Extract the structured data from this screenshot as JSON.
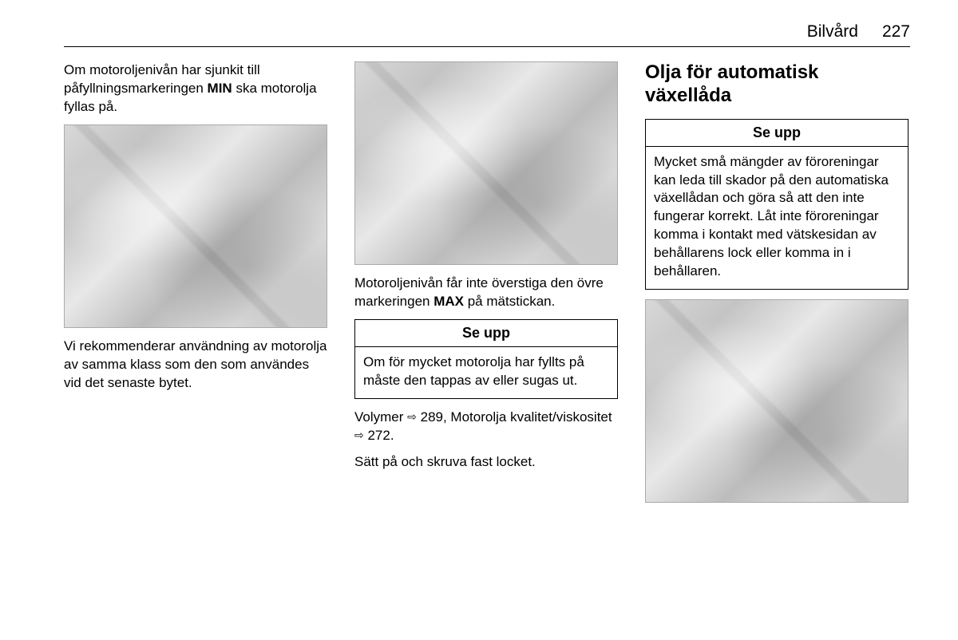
{
  "header": {
    "section": "Bilvård",
    "page": "227"
  },
  "col1": {
    "para1_a": "Om motoroljenivån har sjunkit till påfyllningsmarkeringen ",
    "para1_bold": "MIN",
    "para1_b": " ska motorolja fyllas på.",
    "para2": "Vi rekommenderar användning av motorolja av samma klass som den som användes vid det senaste bytet."
  },
  "col2": {
    "para1_a": "Motoroljenivån får inte överstiga den övre markeringen ",
    "para1_bold": "MAX",
    "para1_b": " på mätstickan.",
    "caution_title": "Se upp",
    "caution_body": "Om för mycket motorolja har fyllts på måste den tappas av eller sugas ut.",
    "para_ref_a": "Volymer ",
    "ref1": "289",
    "para_ref_b": ", Motorolja kvalitet/viskositet ",
    "ref2": "272",
    "para_ref_c": ".",
    "para3": "Sätt på och skruva fast locket."
  },
  "col3": {
    "heading": "Olja för automatisk växellåda",
    "caution_title": "Se upp",
    "caution_body": "Mycket små mängder av föroreningar kan leda till skador på den automatiska växellådan och göra så att den inte fungerar korrekt. Låt inte föroreningar komma i kontakt med vätskesidan av behållarens lock eller komma in i behållaren."
  },
  "ref_arrow_glyph": "❖"
}
